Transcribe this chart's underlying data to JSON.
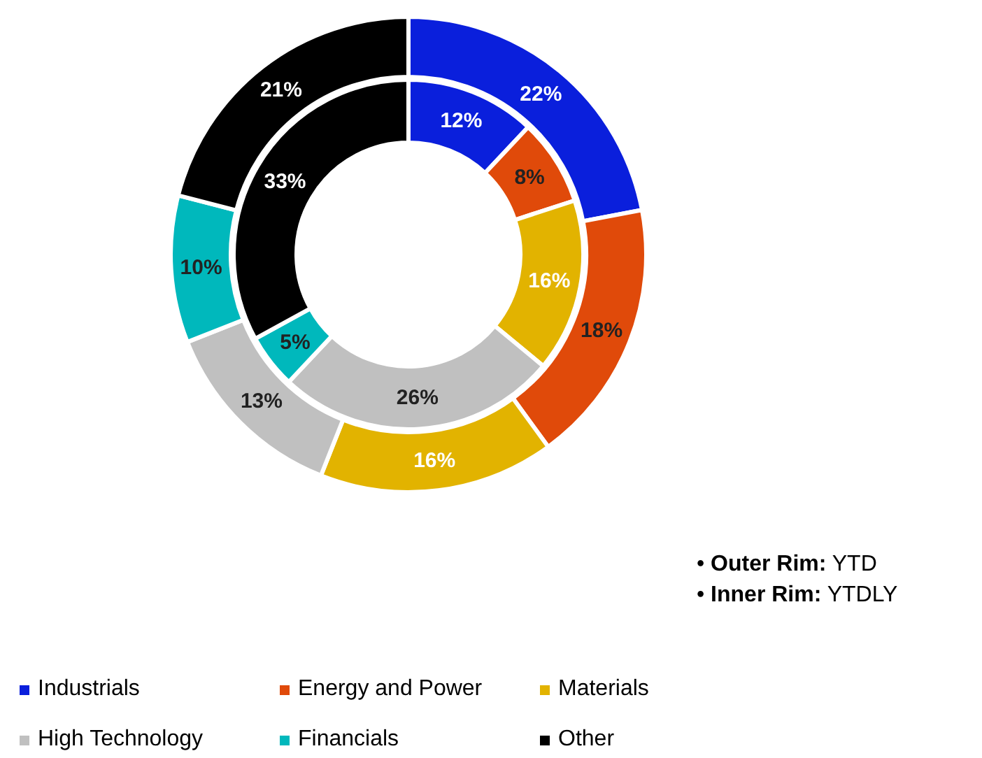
{
  "chart_data": {
    "type": "donut",
    "categories": [
      "Industrials",
      "Energy and Power",
      "Materials",
      "High Technology",
      "Financials",
      "Other"
    ],
    "colors": [
      "#0a1fdc",
      "#e04a0a",
      "#e2b300",
      "#c0c0c0",
      "#00b8bc",
      "#000000"
    ],
    "series": [
      {
        "values": [
          22,
          18,
          16,
          13,
          10,
          21
        ],
        "value_labels": [
          "22%",
          "18%",
          "16%",
          "13%",
          "10%",
          "21%"
        ]
      },
      {
        "values": [
          12,
          8,
          16,
          26,
          5,
          33
        ],
        "value_labels": [
          "12%",
          "8%",
          "16%",
          "26%",
          "5%",
          "33%"
        ]
      }
    ],
    "legend": "bottom",
    "annotations": [
      "• Outer Rim: YTD",
      "• Inner Rim: YTDLY"
    ]
  }
}
